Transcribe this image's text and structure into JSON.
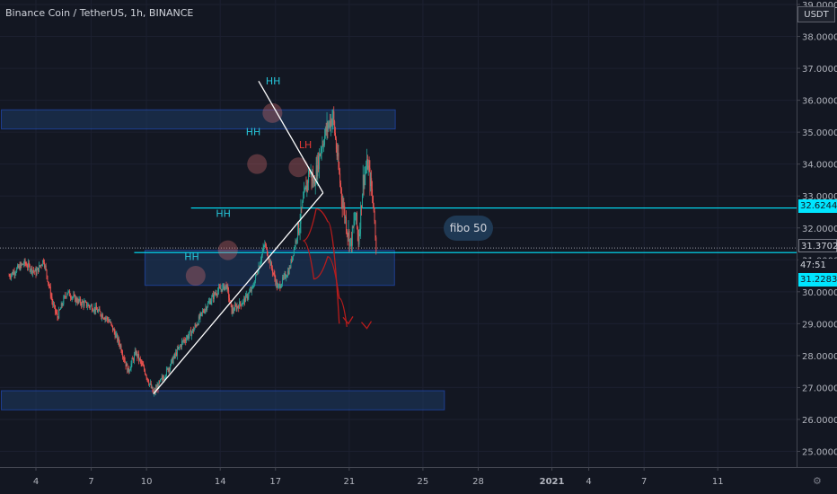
{
  "header": {
    "title": "Binance Coin / TetherUS, 1h, BINANCE",
    "currency_button": "USDT"
  },
  "price_tags": {
    "level_upper": "32.6244",
    "last_price": "31.3702",
    "countdown": "47:51",
    "level_lower": "31.2283"
  },
  "annotations": {
    "fibo_label": "fibo 50",
    "higher_high": "HH",
    "lower_high": "LH"
  },
  "colors": {
    "background": "#131722",
    "up_candle": "#26a69a",
    "down_candle": "#ef5350",
    "zone_fill": "#1d3a63",
    "zone_border": "#2962ff",
    "level_line": "#00e5ff",
    "annotation_hh": "#26c6da",
    "annotation_lh": "#e53935",
    "projection": "#b71c1c"
  },
  "chart_data": {
    "type": "candlestick",
    "symbol": "Binance Coin / TetherUS",
    "interval": "1h",
    "exchange": "BINANCE",
    "y_ticks": [
      "39.0000",
      "38.0000",
      "37.0000",
      "36.0000",
      "35.0000",
      "34.0000",
      "33.0000",
      "32.0000",
      "31.0000",
      "30.0000",
      "29.0000",
      "28.0000",
      "27.0000",
      "26.0000",
      "25.0000"
    ],
    "ylim": [
      24.2,
      39.2
    ],
    "x_ticks": [
      {
        "label": "4",
        "bar": 0
      },
      {
        "label": "7",
        "bar": 72
      },
      {
        "label": "10",
        "bar": 144
      },
      {
        "label": "14",
        "bar": 240
      },
      {
        "label": "17",
        "bar": 312
      },
      {
        "label": "21",
        "bar": 408
      },
      {
        "label": "25",
        "bar": 504
      },
      {
        "label": "28",
        "bar": 576
      },
      {
        "label": "2021",
        "bar": 672
      },
      {
        "label": "4",
        "bar": 720
      },
      {
        "label": "7",
        "bar": 792
      },
      {
        "label": "11",
        "bar": 888
      }
    ],
    "price_path": [
      {
        "bar": -35,
        "price": 30.5
      },
      {
        "bar": -15,
        "price": 30.9
      },
      {
        "bar": 0,
        "price": 30.6
      },
      {
        "bar": 10,
        "price": 31.0
      },
      {
        "bar": 22,
        "price": 29.6
      },
      {
        "bar": 28,
        "price": 29.2
      },
      {
        "bar": 40,
        "price": 30.0
      },
      {
        "bar": 55,
        "price": 29.7
      },
      {
        "bar": 75,
        "price": 29.5
      },
      {
        "bar": 95,
        "price": 29.1
      },
      {
        "bar": 110,
        "price": 28.3
      },
      {
        "bar": 120,
        "price": 27.5
      },
      {
        "bar": 130,
        "price": 28.1
      },
      {
        "bar": 142,
        "price": 27.5
      },
      {
        "bar": 153,
        "price": 26.8
      },
      {
        "bar": 170,
        "price": 27.5
      },
      {
        "bar": 190,
        "price": 28.4
      },
      {
        "bar": 205,
        "price": 28.8
      },
      {
        "bar": 218,
        "price": 29.4
      },
      {
        "bar": 235,
        "price": 30.0
      },
      {
        "bar": 248,
        "price": 30.2
      },
      {
        "bar": 255,
        "price": 29.4
      },
      {
        "bar": 270,
        "price": 29.7
      },
      {
        "bar": 282,
        "price": 30.1
      },
      {
        "bar": 298,
        "price": 31.5
      },
      {
        "bar": 305,
        "price": 30.9
      },
      {
        "bar": 315,
        "price": 30.1
      },
      {
        "bar": 330,
        "price": 30.7
      },
      {
        "bar": 342,
        "price": 32.0
      },
      {
        "bar": 356,
        "price": 33.8
      },
      {
        "bar": 362,
        "price": 33.4
      },
      {
        "bar": 372,
        "price": 34.6
      },
      {
        "bar": 380,
        "price": 35.2
      },
      {
        "bar": 387,
        "price": 35.5
      },
      {
        "bar": 392,
        "price": 34.3
      },
      {
        "bar": 398,
        "price": 33.0
      },
      {
        "bar": 405,
        "price": 32.0
      },
      {
        "bar": 410,
        "price": 31.5
      },
      {
        "bar": 416,
        "price": 32.4
      },
      {
        "bar": 420,
        "price": 31.6
      },
      {
        "bar": 426,
        "price": 33.5
      },
      {
        "bar": 432,
        "price": 34.0
      },
      {
        "bar": 437,
        "price": 33.2
      },
      {
        "bar": 440,
        "price": 32.6
      },
      {
        "bar": 443,
        "price": 31.37
      }
    ],
    "zones": [
      {
        "bar_start": -45,
        "bar_end": 468,
        "low": 35.1,
        "high": 35.7
      },
      {
        "bar_start": 142,
        "bar_end": 467,
        "low": 30.2,
        "high": 31.3
      },
      {
        "bar_start": -45,
        "bar_end": 532,
        "low": 26.3,
        "high": 26.9
      }
    ],
    "horizontal_levels": [
      {
        "price": 32.6244,
        "bar_start": 202
      },
      {
        "price": 31.2283,
        "bar_start": 128
      }
    ],
    "last_price": 31.3702,
    "triangle": {
      "apex": {
        "bar": 374,
        "price": 33.1
      },
      "upper_start": {
        "bar": 290,
        "price": 36.6
      },
      "lower_start": {
        "bar": 153,
        "price": 26.8
      }
    },
    "labels": [
      {
        "text": "HH",
        "bar": 309,
        "price": 36.5,
        "color": "hh"
      },
      {
        "text": "HH",
        "bar": 283,
        "price": 34.9,
        "color": "hh"
      },
      {
        "text": "HH",
        "bar": 244,
        "price": 32.35,
        "color": "hh"
      },
      {
        "text": "HH",
        "bar": 203,
        "price": 31.0,
        "color": "hh"
      },
      {
        "text": "LH",
        "bar": 351,
        "price": 34.5,
        "color": "lh"
      }
    ],
    "highlight_circles": [
      {
        "bar": 308,
        "price": 35.6
      },
      {
        "bar": 288,
        "price": 34.0
      },
      {
        "bar": 250,
        "price": 31.3
      },
      {
        "bar": 208,
        "price": 30.5
      },
      {
        "bar": 342,
        "price": 33.9
      }
    ],
    "projection_paths": [
      [
        {
          "bar": 348,
          "price": 31.6
        },
        {
          "bar": 365,
          "price": 32.6
        },
        {
          "bar": 380,
          "price": 32.2
        },
        {
          "bar": 395,
          "price": 29.0
        }
      ],
      [
        {
          "bar": 348,
          "price": 31.6
        },
        {
          "bar": 362,
          "price": 30.4
        },
        {
          "bar": 380,
          "price": 31.1
        },
        {
          "bar": 395,
          "price": 29.8
        },
        {
          "bar": 405,
          "price": 28.9
        }
      ]
    ],
    "projection_arrows": [
      {
        "bar": 407,
        "price": 29.0
      },
      {
        "bar": 431,
        "price": 28.85
      }
    ]
  }
}
